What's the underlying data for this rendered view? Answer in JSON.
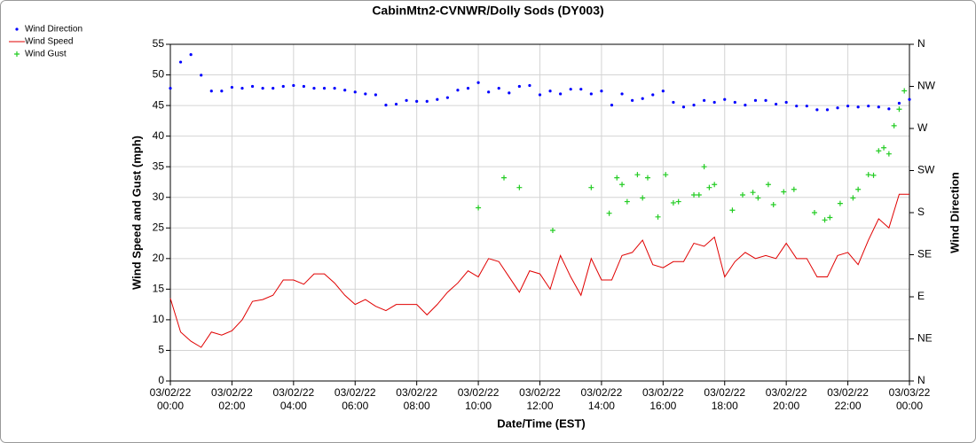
{
  "chart_data": {
    "type": "line",
    "title": "CabinMtn2-CVNWR/Dolly Sods (DY003)",
    "xlabel": "Date/Time (EST)",
    "ylabel": "Wind Speed and Gust (mph)",
    "y2label": "Wind Direction",
    "grid": true,
    "legend": "top-left",
    "xlim": [
      0,
      1440
    ],
    "xticks": [
      {
        "value": 0,
        "label": "03/02/22\n00:00"
      },
      {
        "value": 120,
        "label": "03/02/22\n02:00"
      },
      {
        "value": 240,
        "label": "03/02/22\n04:00"
      },
      {
        "value": 360,
        "label": "03/02/22\n06:00"
      },
      {
        "value": 480,
        "label": "03/02/22\n08:00"
      },
      {
        "value": 600,
        "label": "03/02/22\n10:00"
      },
      {
        "value": 720,
        "label": "03/02/22\n12:00"
      },
      {
        "value": 840,
        "label": "03/02/22\n14:00"
      },
      {
        "value": 960,
        "label": "03/02/22\n16:00"
      },
      {
        "value": 1080,
        "label": "03/02/22\n18:00"
      },
      {
        "value": 1200,
        "label": "03/02/22\n20:00"
      },
      {
        "value": 1320,
        "label": "03/02/22\n22:00"
      },
      {
        "value": 1440,
        "label": "03/03/22\n00:00"
      }
    ],
    "ylim": [
      0,
      55
    ],
    "yticks": [
      0,
      5,
      10,
      15,
      20,
      25,
      30,
      35,
      40,
      45,
      50,
      55
    ],
    "y2lim": [
      0,
      360
    ],
    "y2ticks": [
      {
        "value": 0,
        "label": "N"
      },
      {
        "value": 45,
        "label": "NE"
      },
      {
        "value": 90,
        "label": "E"
      },
      {
        "value": 135,
        "label": "SE"
      },
      {
        "value": 180,
        "label": "S"
      },
      {
        "value": 225,
        "label": "SW"
      },
      {
        "value": 270,
        "label": "W"
      },
      {
        "value": 315,
        "label": "NW"
      },
      {
        "value": 360,
        "label": "N"
      }
    ],
    "series": [
      {
        "name": "Wind Direction",
        "color": "#0000ff",
        "style": "dot",
        "axis": "y2",
        "x": [
          0,
          20,
          40,
          60,
          80,
          100,
          120,
          140,
          160,
          180,
          200,
          220,
          240,
          260,
          280,
          300,
          320,
          340,
          360,
          380,
          400,
          420,
          440,
          460,
          480,
          500,
          520,
          540,
          560,
          580,
          600,
          620,
          640,
          660,
          680,
          700,
          720,
          740,
          760,
          780,
          800,
          820,
          840,
          860,
          880,
          900,
          920,
          940,
          960,
          980,
          1000,
          1020,
          1040,
          1060,
          1080,
          1100,
          1120,
          1140,
          1160,
          1180,
          1200,
          1220,
          1240,
          1260,
          1280,
          1300,
          1320,
          1340,
          1360,
          1380,
          1400,
          1420,
          1440
        ],
        "values": [
          313,
          341,
          349,
          327,
          310,
          310,
          314,
          313,
          315,
          313,
          313,
          315,
          316,
          315,
          313,
          313,
          313,
          311,
          309,
          307,
          306,
          295,
          296,
          300,
          299,
          299,
          301,
          303,
          311,
          313,
          319,
          309,
          313,
          308,
          315,
          316,
          306,
          310,
          307,
          312,
          312,
          307,
          310,
          295,
          307,
          300,
          302,
          306,
          310,
          298,
          293,
          295,
          300,
          298,
          301,
          298,
          295,
          300,
          300,
          296,
          298,
          294,
          294,
          290,
          290,
          292,
          294,
          293,
          294,
          293,
          291,
          297,
          301
        ]
      },
      {
        "name": "Wind Speed",
        "color": "#e00000",
        "style": "line",
        "x": [
          0,
          20,
          40,
          60,
          80,
          100,
          120,
          140,
          160,
          180,
          200,
          220,
          240,
          260,
          280,
          300,
          320,
          340,
          360,
          380,
          400,
          420,
          440,
          460,
          480,
          500,
          520,
          540,
          560,
          580,
          600,
          620,
          640,
          660,
          680,
          700,
          720,
          740,
          760,
          780,
          800,
          820,
          840,
          860,
          880,
          900,
          920,
          940,
          960,
          980,
          1000,
          1020,
          1040,
          1060,
          1080,
          1100,
          1120,
          1140,
          1160,
          1180,
          1200,
          1220,
          1240,
          1260,
          1280,
          1300,
          1320,
          1340,
          1360,
          1380,
          1400,
          1420,
          1440
        ],
        "values": [
          13.5,
          8,
          6.5,
          5.5,
          8,
          7.5,
          8.2,
          10,
          13,
          13.3,
          14,
          16.5,
          16.5,
          15.8,
          17.5,
          17.5,
          16,
          14,
          12.5,
          13.3,
          12.2,
          11.5,
          12.5,
          12.5,
          12.5,
          10.8,
          12.5,
          14.5,
          16,
          18,
          17,
          20,
          19.5,
          17,
          14.5,
          18,
          17.5,
          15,
          20.5,
          17,
          14,
          20,
          16.5,
          16.5,
          20.5,
          21,
          23,
          19,
          18.5,
          19.5,
          19.5,
          22.5,
          22,
          23.5,
          17,
          19.5,
          21,
          20,
          20.5,
          20,
          22.5,
          20,
          20,
          17,
          17,
          20.5,
          21,
          19,
          23,
          26.5,
          25,
          30.5,
          30.5
        ]
      },
      {
        "name": "Wind Gust",
        "color": "#22cc22",
        "style": "plus",
        "x": [
          600,
          650,
          680,
          745,
          820,
          855,
          870,
          880,
          890,
          910,
          920,
          930,
          950,
          965,
          980,
          990,
          1020,
          1030,
          1040,
          1050,
          1060,
          1095,
          1115,
          1135,
          1145,
          1165,
          1175,
          1195,
          1215,
          1255,
          1275,
          1285,
          1305,
          1330,
          1340,
          1360,
          1370,
          1380,
          1390,
          1400,
          1410,
          1420,
          1430
        ],
        "values": [
          28.3,
          33.2,
          31.6,
          24.6,
          31.6,
          27.4,
          33.2,
          32.1,
          29.3,
          33.7,
          29.9,
          33.2,
          26.8,
          33.7,
          29.1,
          29.3,
          30.4,
          30.4,
          35,
          31.6,
          32.1,
          27.9,
          30.4,
          30.8,
          29.9,
          32.1,
          28.8,
          30.9,
          31.3,
          27.5,
          26.3,
          26.7,
          29,
          29.9,
          31.3,
          33.7,
          33.6,
          37.6,
          38.1,
          37.1,
          41.7,
          44.4,
          47.4
        ]
      }
    ]
  }
}
